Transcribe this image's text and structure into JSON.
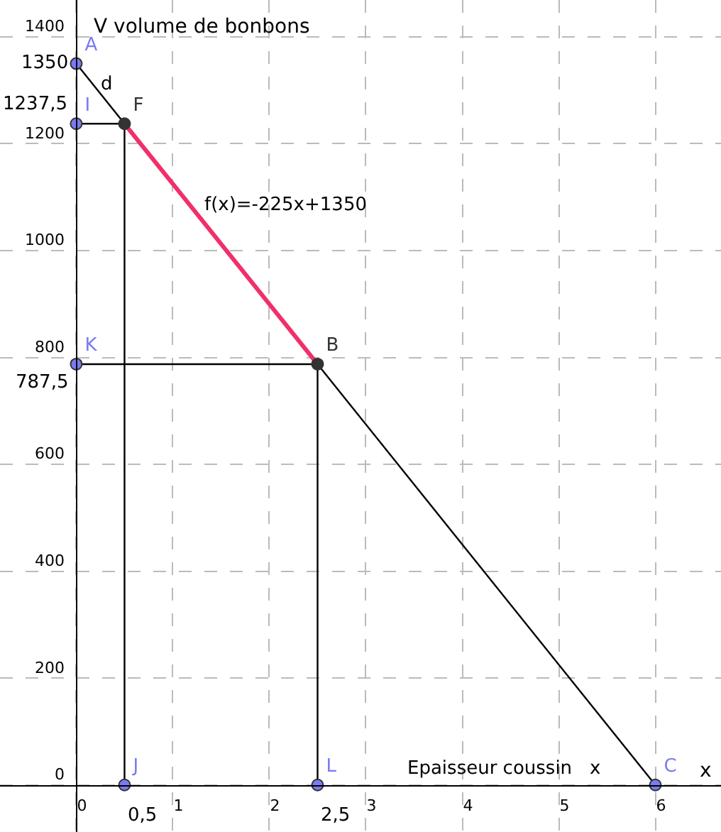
{
  "chart_data": {
    "type": "line",
    "xlabel": "x",
    "ylabel": "V volume de bonbons",
    "xlim": [
      -0.79,
      6.68
    ],
    "ylim": [
      -88,
      1469
    ],
    "xticks": [
      0,
      1,
      2,
      3,
      4,
      5,
      6
    ],
    "yticks": [
      0,
      200,
      400,
      600,
      800,
      1000,
      1200,
      1400
    ],
    "grid": true,
    "series": [
      {
        "color": "#000000",
        "x": [
          0,
          0.5
        ],
        "values": [
          1350,
          1237.5
        ]
      },
      {
        "color": "#f0306a",
        "x": [
          0.5,
          2.5
        ],
        "values": [
          1237.5,
          787.5
        ]
      },
      {
        "color": "#000000",
        "x": [
          2.5,
          6
        ],
        "values": [
          787.5,
          0
        ]
      },
      {
        "color": "#000000",
        "x": [
          0,
          0.5
        ],
        "values": [
          1237.5,
          1237.5
        ]
      },
      {
        "color": "#000000",
        "x": [
          0.5,
          0.5
        ],
        "values": [
          1237.5,
          0
        ]
      },
      {
        "color": "#000000",
        "x": [
          0,
          2.5
        ],
        "values": [
          787.5,
          787.5
        ]
      },
      {
        "color": "#000000",
        "x": [
          2.5,
          2.5
        ],
        "values": [
          787.5,
          0
        ]
      },
      {
        "type": "scatter",
        "color": "#7b7bf0",
        "marker": "circle",
        "x": [
          0,
          0,
          0,
          0.5,
          2.5,
          6
        ],
        "values": [
          1350,
          1237.5,
          787.5,
          0,
          0,
          0
        ],
        "value_labels": [
          "A",
          "I",
          "K",
          "J",
          "L",
          "C"
        ]
      },
      {
        "type": "scatter",
        "color": "#333333",
        "marker": "circle",
        "x": [
          0.5,
          2.5
        ],
        "values": [
          1237.5,
          787.5
        ],
        "value_labels": [
          "F",
          "B"
        ]
      }
    ],
    "annotations": [
      {
        "text": "1350",
        "x": 0,
        "y": 1350
      },
      {
        "text": "1237,5",
        "x": 0,
        "y": 1237.5
      },
      {
        "text": "787,5",
        "x": 0,
        "y": 787.5
      },
      {
        "text": "0,5",
        "x": 0.5,
        "y": 0
      },
      {
        "text": "2,5",
        "x": 2.5,
        "y": 0
      },
      "d",
      "f(x)=-225x+1350",
      "Epaisseur coussin   x"
    ]
  }
}
